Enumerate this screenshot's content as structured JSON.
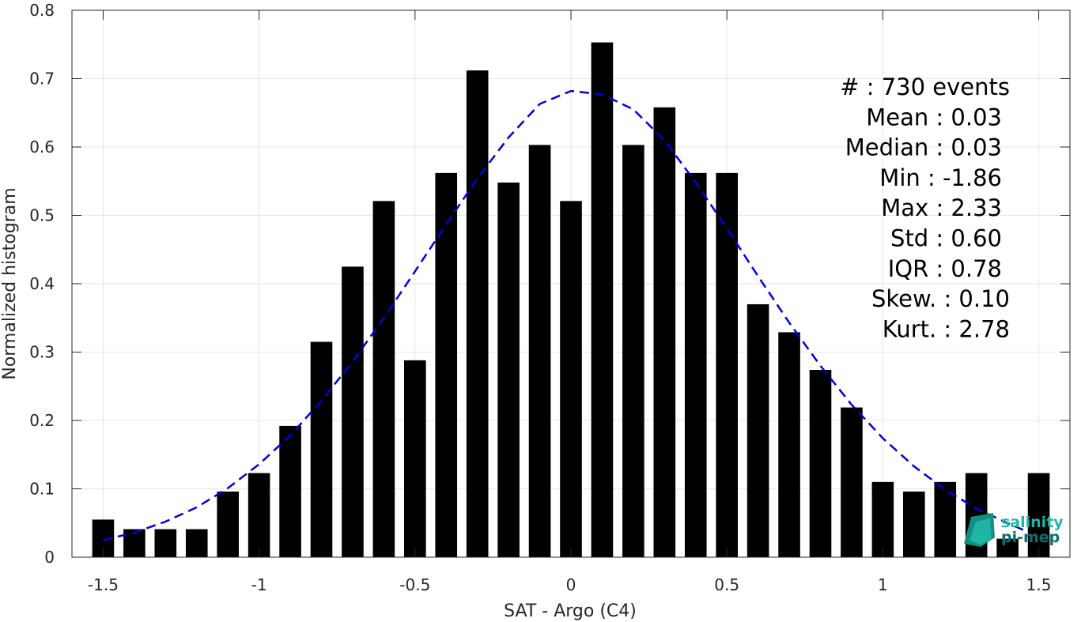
{
  "chart_data": {
    "type": "bar",
    "xlabel": "SAT - Argo (C4)",
    "ylabel": "Normalized histogram",
    "xlim": [
      -1.6,
      1.6
    ],
    "ylim": [
      0,
      0.8
    ],
    "xticks": [
      "-1.5",
      "-1",
      "-0.5",
      "0",
      "0.5",
      "1",
      "1.5"
    ],
    "xtick_values": [
      -1.5,
      -1,
      -0.5,
      0,
      0.5,
      1,
      1.5
    ],
    "yticks": [
      "0",
      "0.1",
      "0.2",
      "0.3",
      "0.4",
      "0.5",
      "0.6",
      "0.7",
      "0.8"
    ],
    "ytick_values": [
      0,
      0.1,
      0.2,
      0.3,
      0.4,
      0.5,
      0.6,
      0.7,
      0.8
    ],
    "grid": true,
    "bar_width": 0.07,
    "bar_color": "#000000",
    "bins": [
      {
        "x": -1.5,
        "y": 0.055
      },
      {
        "x": -1.4,
        "y": 0.041
      },
      {
        "x": -1.3,
        "y": 0.041
      },
      {
        "x": -1.2,
        "y": 0.041
      },
      {
        "x": -1.1,
        "y": 0.096
      },
      {
        "x": -1.0,
        "y": 0.123
      },
      {
        "x": -0.9,
        "y": 0.192
      },
      {
        "x": -0.8,
        "y": 0.315
      },
      {
        "x": -0.7,
        "y": 0.425
      },
      {
        "x": -0.6,
        "y": 0.521
      },
      {
        "x": -0.5,
        "y": 0.288
      },
      {
        "x": -0.4,
        "y": 0.562
      },
      {
        "x": -0.3,
        "y": 0.712
      },
      {
        "x": -0.2,
        "y": 0.548
      },
      {
        "x": -0.1,
        "y": 0.603
      },
      {
        "x": 0.0,
        "y": 0.521
      },
      {
        "x": 0.1,
        "y": 0.753
      },
      {
        "x": 0.2,
        "y": 0.603
      },
      {
        "x": 0.3,
        "y": 0.658
      },
      {
        "x": 0.4,
        "y": 0.562
      },
      {
        "x": 0.5,
        "y": 0.562
      },
      {
        "x": 0.6,
        "y": 0.37
      },
      {
        "x": 0.7,
        "y": 0.329
      },
      {
        "x": 0.8,
        "y": 0.274
      },
      {
        "x": 0.9,
        "y": 0.219
      },
      {
        "x": 1.0,
        "y": 0.11
      },
      {
        "x": 1.1,
        "y": 0.096
      },
      {
        "x": 1.2,
        "y": 0.11
      },
      {
        "x": 1.3,
        "y": 0.123
      },
      {
        "x": 1.4,
        "y": 0.027
      },
      {
        "x": 1.5,
        "y": 0.123
      }
    ],
    "fit_curve": {
      "style": "dashed",
      "color": "#0000dd",
      "points": [
        [
          -1.5,
          0.025
        ],
        [
          -1.4,
          0.036
        ],
        [
          -1.3,
          0.052
        ],
        [
          -1.2,
          0.073
        ],
        [
          -1.1,
          0.101
        ],
        [
          -1.0,
          0.136
        ],
        [
          -0.9,
          0.178
        ],
        [
          -0.8,
          0.229
        ],
        [
          -0.7,
          0.286
        ],
        [
          -0.6,
          0.35
        ],
        [
          -0.5,
          0.418
        ],
        [
          -0.4,
          0.487
        ],
        [
          -0.3,
          0.554
        ],
        [
          -0.2,
          0.614
        ],
        [
          -0.1,
          0.663
        ],
        [
          0.0,
          0.682
        ],
        [
          0.1,
          0.677
        ],
        [
          0.2,
          0.655
        ],
        [
          0.3,
          0.61
        ],
        [
          0.4,
          0.548
        ],
        [
          0.5,
          0.481
        ],
        [
          0.6,
          0.411
        ],
        [
          0.7,
          0.343
        ],
        [
          0.8,
          0.28
        ],
        [
          0.9,
          0.223
        ],
        [
          1.0,
          0.174
        ],
        [
          1.1,
          0.133
        ],
        [
          1.2,
          0.099
        ],
        [
          1.3,
          0.071
        ],
        [
          1.4,
          0.05
        ],
        [
          1.45,
          0.04
        ]
      ]
    },
    "stats": [
      {
        "label": "#  : 730 events"
      },
      {
        "label": "Mean : 0.03"
      },
      {
        "label": "Median : 0.03"
      },
      {
        "label": "Min : -1.86"
      },
      {
        "label": "Max : 2.33"
      },
      {
        "label": "Std : 0.60"
      },
      {
        "label": "IQR : 0.78"
      },
      {
        "label": "Skew. : 0.10"
      },
      {
        "label": "Kurt. : 2.78"
      }
    ]
  },
  "logo": {
    "line1": "salinity",
    "line2": "pi-mep",
    "color1": "#1fb6a6",
    "color2": "#0d6f6f"
  }
}
